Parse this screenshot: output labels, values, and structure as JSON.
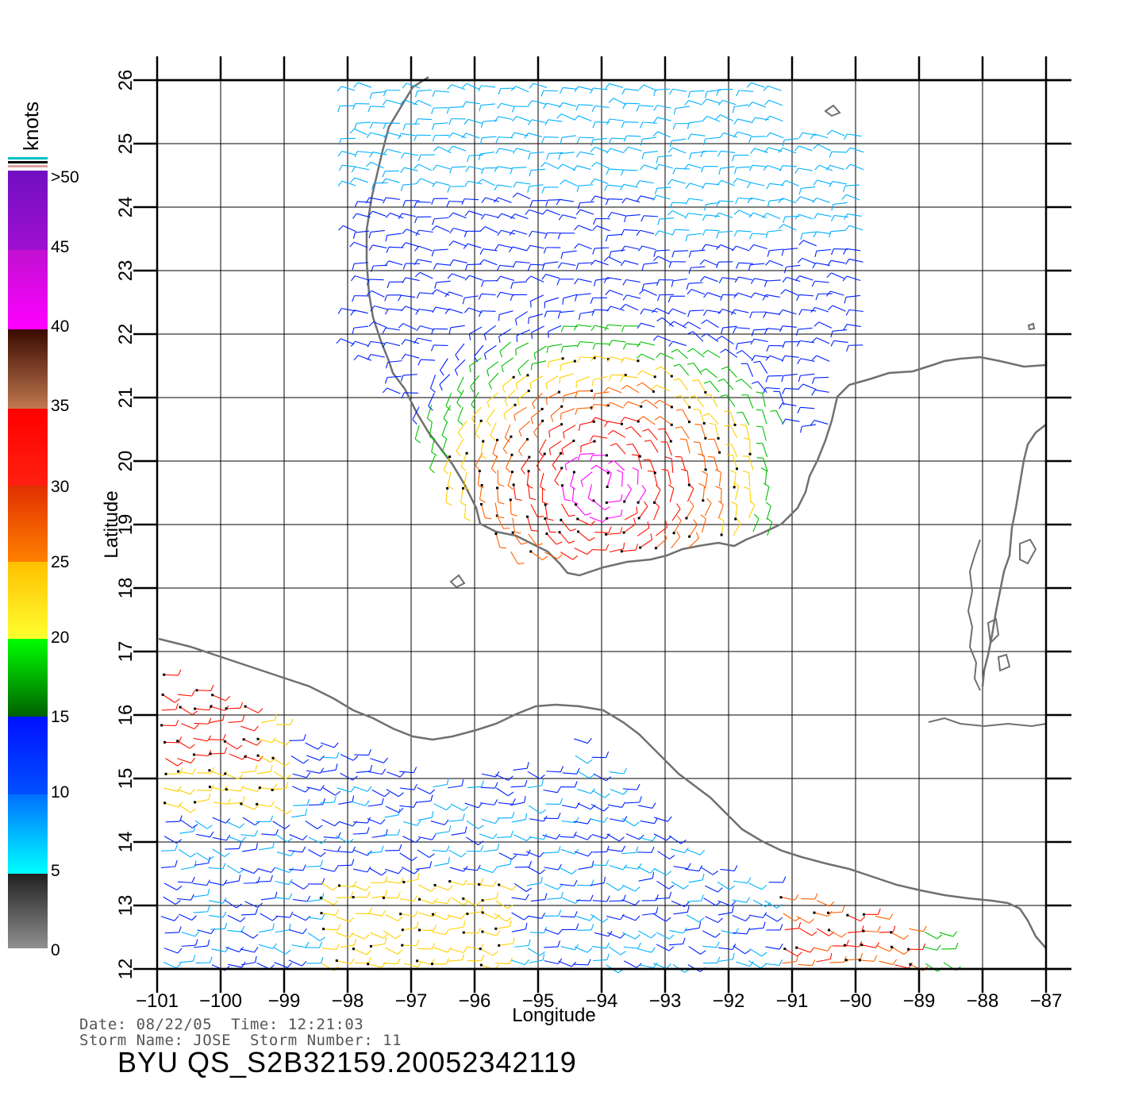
{
  "header": {
    "date_label": "Date:",
    "date": "08/22/05",
    "time_label": "Time:",
    "time": "12:21:03",
    "storm_name_label": "Storm Name:",
    "storm_name": "JOSE",
    "storm_number_label": "Storm Number:",
    "storm_number": "11",
    "file_id": "BYU QS_S2B32159.20052342119"
  },
  "map": {
    "x_axis_label": "Longitude",
    "y_axis_label": "Latitude",
    "lon_range": [
      -101,
      -87
    ],
    "lat_range": [
      12,
      26
    ],
    "lon_ticks": [
      "−101",
      "−100",
      "−99",
      "−98",
      "−97",
      "−96",
      "−95",
      "−94",
      "−93",
      "−92",
      "−91",
      "−90",
      "−89",
      "−88",
      "−87"
    ],
    "lat_ticks": [
      "12",
      "13",
      "14",
      "15",
      "16",
      "17",
      "18",
      "19",
      "20",
      "21",
      "22",
      "23",
      "24",
      "25",
      "26"
    ],
    "grid": true,
    "coastline_color": "#707070"
  },
  "colorbar": {
    "unit": "knots",
    "labels": [
      ">50",
      "45",
      "40",
      "35",
      "30",
      "25",
      "20",
      "15",
      "10",
      "5",
      "0"
    ],
    "colors": {
      "0-5": "#4a4a4a",
      "5-10": "#00b0ff",
      "10-15": "#0020ff",
      "15-20": "#00c000",
      "20-25": "#ffd000",
      "25-30": "#ff6000",
      "30-35": "#ff1000",
      "35-40": "#7a3a20",
      "40-45": "#ff00ff",
      "45-50": "#a000c0"
    }
  }
}
